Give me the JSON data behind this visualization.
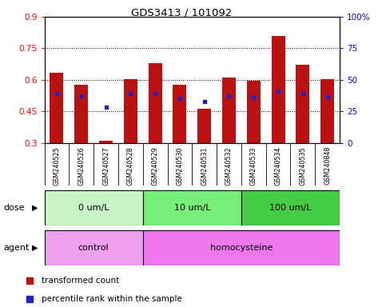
{
  "title": "GDS3413 / 101092",
  "samples": [
    "GSM240525",
    "GSM240526",
    "GSM240527",
    "GSM240528",
    "GSM240529",
    "GSM240530",
    "GSM240531",
    "GSM240532",
    "GSM240533",
    "GSM240534",
    "GSM240535",
    "GSM240848"
  ],
  "red_values": [
    0.635,
    0.575,
    0.31,
    0.605,
    0.68,
    0.578,
    0.463,
    0.61,
    0.597,
    0.81,
    0.67,
    0.605
  ],
  "blue_values": [
    0.535,
    0.525,
    0.47,
    0.535,
    0.535,
    0.51,
    0.495,
    0.525,
    0.515,
    0.545,
    0.535,
    0.52
  ],
  "ymin": 0.3,
  "ymax": 0.9,
  "y_ticks_left": [
    0.3,
    0.45,
    0.6,
    0.75,
    0.9
  ],
  "y_ticks_right_vals": [
    0,
    25,
    50,
    75,
    100
  ],
  "dose_groups": [
    {
      "label": "0 um/L",
      "start": 0,
      "end": 4,
      "color": "#c8f5c8"
    },
    {
      "label": "10 um/L",
      "start": 4,
      "end": 8,
      "color": "#77ee77"
    },
    {
      "label": "100 um/L",
      "start": 8,
      "end": 12,
      "color": "#44cc44"
    }
  ],
  "agent_groups": [
    {
      "label": "control",
      "start": 0,
      "end": 4,
      "color": "#f0a0f0"
    },
    {
      "label": "homocysteine",
      "start": 4,
      "end": 12,
      "color": "#ee77ee"
    }
  ],
  "bar_color": "#bb1111",
  "dot_color": "#2222cc",
  "sample_bg": "#d8d8d8",
  "legend_red": "transformed count",
  "legend_blue": "percentile rank within the sample",
  "dose_label": "dose",
  "agent_label": "agent"
}
